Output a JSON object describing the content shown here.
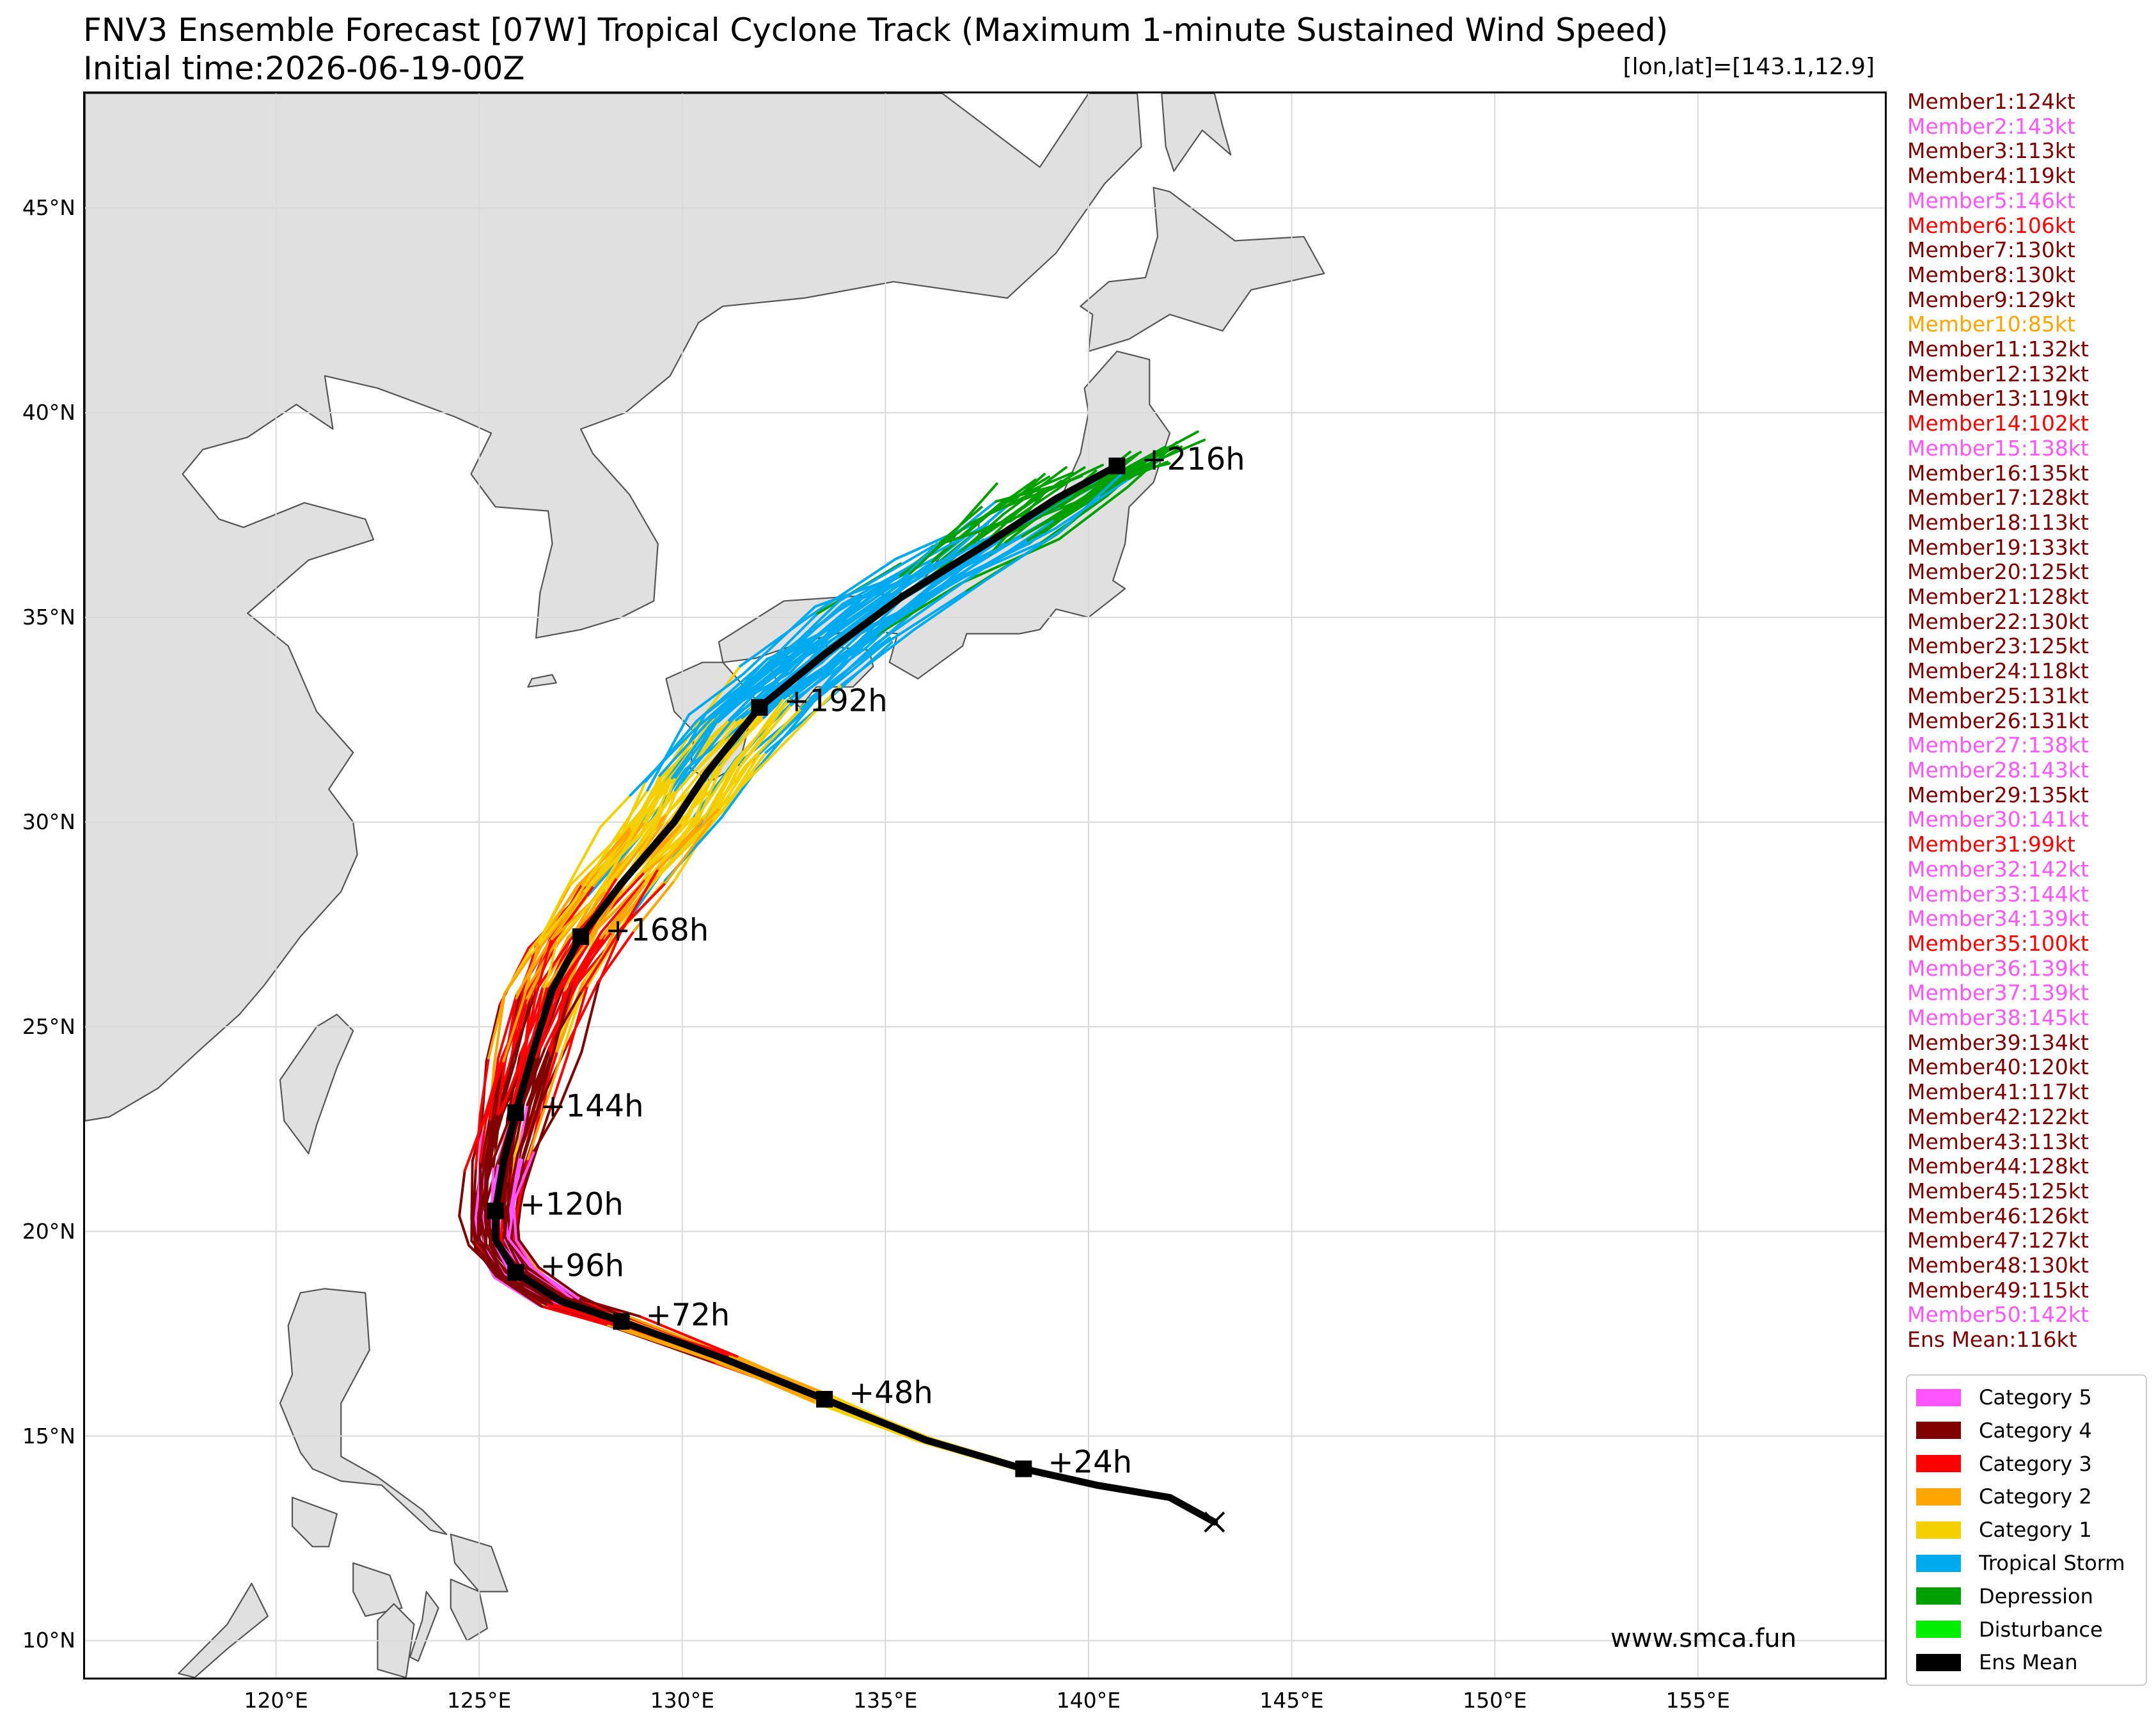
{
  "title": {
    "line1": "FNV3 Ensemble Forecast [07W] Tropical Cyclone Track (Maximum 1-minute Sustained Wind Speed)",
    "line2": "Initial time:2026-06-19-00Z"
  },
  "coord_readout": "[lon,lat]=[143.1,12.9]",
  "map": {
    "projection": "PlateCarree",
    "lon_range": [
      115.3,
      159.6
    ],
    "lat_range": [
      9.1,
      47.8
    ],
    "lat_ticks": [
      {
        "value": 10,
        "label": "10°N"
      },
      {
        "value": 15,
        "label": "15°N"
      },
      {
        "value": 20,
        "label": "20°N"
      },
      {
        "value": 25,
        "label": "25°N"
      },
      {
        "value": 30,
        "label": "30°N"
      },
      {
        "value": 35,
        "label": "35°N"
      },
      {
        "value": 40,
        "label": "40°N"
      },
      {
        "value": 45,
        "label": "45°N"
      }
    ],
    "lon_ticks": [
      {
        "value": 120,
        "label": "120°E"
      },
      {
        "value": 125,
        "label": "125°E"
      },
      {
        "value": 130,
        "label": "130°E"
      },
      {
        "value": 135,
        "label": "135°E"
      },
      {
        "value": 140,
        "label": "140°E"
      },
      {
        "value": 145,
        "label": "145°E"
      },
      {
        "value": 150,
        "label": "150°E"
      },
      {
        "value": 155,
        "label": "155°E"
      }
    ],
    "grid": true,
    "land_color": "#e0e0e0",
    "coast_color": "#555555",
    "grid_color": "#d9d9d9"
  },
  "storm_start": {
    "lon": 143.1,
    "lat": 12.9
  },
  "ensemble_mean": {
    "color": "#000000",
    "track": [
      [
        143.1,
        12.9
      ],
      [
        142.0,
        13.5
      ],
      [
        140.2,
        13.8
      ],
      [
        138.4,
        14.2
      ],
      [
        136.0,
        14.9
      ],
      [
        133.5,
        15.9
      ],
      [
        131.0,
        16.9
      ],
      [
        128.5,
        17.8
      ],
      [
        127.0,
        18.3
      ],
      [
        125.9,
        19.0
      ],
      [
        125.4,
        19.8
      ],
      [
        125.4,
        20.5
      ],
      [
        125.6,
        21.7
      ],
      [
        125.9,
        22.9
      ],
      [
        126.3,
        24.3
      ],
      [
        126.8,
        25.9
      ],
      [
        127.5,
        27.2
      ],
      [
        128.5,
        28.5
      ],
      [
        129.8,
        30.0
      ],
      [
        130.6,
        31.2
      ],
      [
        131.9,
        32.8
      ],
      [
        133.5,
        34.1
      ],
      [
        135.4,
        35.5
      ],
      [
        137.5,
        36.8
      ],
      [
        139.2,
        37.9
      ],
      [
        140.7,
        38.7
      ]
    ],
    "markers": [
      {
        "lon": 138.4,
        "lat": 14.2,
        "label": "+24h"
      },
      {
        "lon": 133.5,
        "lat": 15.9,
        "label": "+48h"
      },
      {
        "lon": 128.5,
        "lat": 17.8,
        "label": "+72h"
      },
      {
        "lon": 125.9,
        "lat": 19.0,
        "label": "+96h"
      },
      {
        "lon": 125.4,
        "lat": 20.5,
        "label": "+120h"
      },
      {
        "lon": 125.9,
        "lat": 22.9,
        "label": "+144h"
      },
      {
        "lon": 127.5,
        "lat": 27.2,
        "label": "+168h"
      },
      {
        "lon": 131.9,
        "lat": 32.8,
        "label": "+192h"
      },
      {
        "lon": 140.7,
        "lat": 38.7,
        "label": "+216h"
      }
    ]
  },
  "members": [
    {
      "label": "Member1:124kt",
      "color": "#800000"
    },
    {
      "label": "Member2:143kt",
      "color": "#ff55ff"
    },
    {
      "label": "Member3:113kt",
      "color": "#800000"
    },
    {
      "label": "Member4:119kt",
      "color": "#800000"
    },
    {
      "label": "Member5:146kt",
      "color": "#ff55ff"
    },
    {
      "label": "Member6:106kt",
      "color": "#ff0000"
    },
    {
      "label": "Member7:130kt",
      "color": "#800000"
    },
    {
      "label": "Member8:130kt",
      "color": "#800000"
    },
    {
      "label": "Member9:129kt",
      "color": "#800000"
    },
    {
      "label": "Member10:85kt",
      "color": "#ffa500"
    },
    {
      "label": "Member11:132kt",
      "color": "#800000"
    },
    {
      "label": "Member12:132kt",
      "color": "#800000"
    },
    {
      "label": "Member13:119kt",
      "color": "#800000"
    },
    {
      "label": "Member14:102kt",
      "color": "#ff0000"
    },
    {
      "label": "Member15:138kt",
      "color": "#ff55ff"
    },
    {
      "label": "Member16:135kt",
      "color": "#800000"
    },
    {
      "label": "Member17:128kt",
      "color": "#800000"
    },
    {
      "label": "Member18:113kt",
      "color": "#800000"
    },
    {
      "label": "Member19:133kt",
      "color": "#800000"
    },
    {
      "label": "Member20:125kt",
      "color": "#800000"
    },
    {
      "label": "Member21:128kt",
      "color": "#800000"
    },
    {
      "label": "Member22:130kt",
      "color": "#800000"
    },
    {
      "label": "Member23:125kt",
      "color": "#800000"
    },
    {
      "label": "Member24:118kt",
      "color": "#800000"
    },
    {
      "label": "Member25:131kt",
      "color": "#800000"
    },
    {
      "label": "Member26:131kt",
      "color": "#800000"
    },
    {
      "label": "Member27:138kt",
      "color": "#ff55ff"
    },
    {
      "label": "Member28:143kt",
      "color": "#ff55ff"
    },
    {
      "label": "Member29:135kt",
      "color": "#800000"
    },
    {
      "label": "Member30:141kt",
      "color": "#ff55ff"
    },
    {
      "label": "Member31:99kt",
      "color": "#ff0000"
    },
    {
      "label": "Member32:142kt",
      "color": "#ff55ff"
    },
    {
      "label": "Member33:144kt",
      "color": "#ff55ff"
    },
    {
      "label": "Member34:139kt",
      "color": "#ff55ff"
    },
    {
      "label": "Member35:100kt",
      "color": "#ff0000"
    },
    {
      "label": "Member36:139kt",
      "color": "#ff55ff"
    },
    {
      "label": "Member37:139kt",
      "color": "#ff55ff"
    },
    {
      "label": "Member38:145kt",
      "color": "#ff55ff"
    },
    {
      "label": "Member39:134kt",
      "color": "#800000"
    },
    {
      "label": "Member40:120kt",
      "color": "#800000"
    },
    {
      "label": "Member41:117kt",
      "color": "#800000"
    },
    {
      "label": "Member42:122kt",
      "color": "#800000"
    },
    {
      "label": "Member43:113kt",
      "color": "#800000"
    },
    {
      "label": "Member44:128kt",
      "color": "#800000"
    },
    {
      "label": "Member45:125kt",
      "color": "#800000"
    },
    {
      "label": "Member46:126kt",
      "color": "#800000"
    },
    {
      "label": "Member47:127kt",
      "color": "#800000"
    },
    {
      "label": "Member48:130kt",
      "color": "#800000"
    },
    {
      "label": "Member49:115kt",
      "color": "#800000"
    },
    {
      "label": "Member50:142kt",
      "color": "#ff55ff"
    },
    {
      "label": "Ens Mean:116kt",
      "color": "#800000"
    }
  ],
  "legend": [
    {
      "label": "Category 5",
      "color": "#ff55ff"
    },
    {
      "label": "Category 4",
      "color": "#800000"
    },
    {
      "label": "Category 3",
      "color": "#ff0000"
    },
    {
      "label": "Category 2",
      "color": "#ffa500"
    },
    {
      "label": "Category 1",
      "color": "#f5d000"
    },
    {
      "label": "Tropical Storm",
      "color": "#00aaee"
    },
    {
      "label": "Depression",
      "color": "#00a000"
    },
    {
      "label": "Disturbance",
      "color": "#00ee00"
    },
    {
      "label": "Ens Mean",
      "color": "#000000"
    }
  ],
  "watermark": "www.smca.fun"
}
